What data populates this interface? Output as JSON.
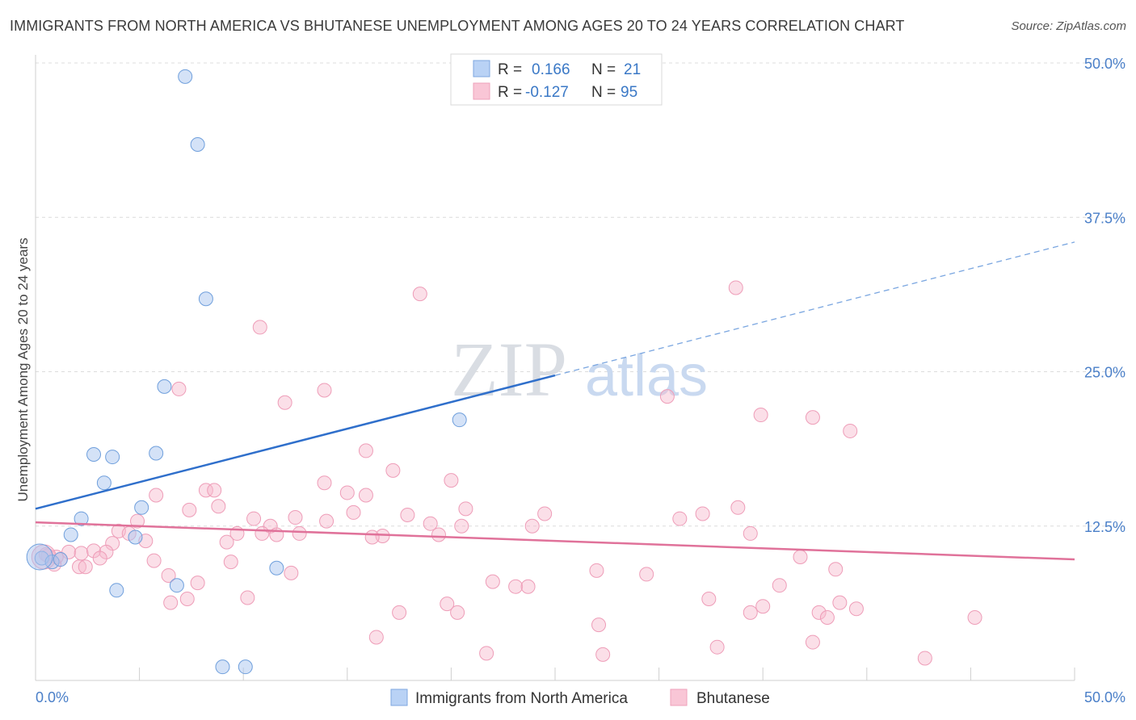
{
  "title": "IMMIGRANTS FROM NORTH AMERICA VS BHUTANESE UNEMPLOYMENT AMONG AGES 20 TO 24 YEARS CORRELATION CHART",
  "source": "Source: ZipAtlas.com",
  "watermark": {
    "zip": "ZIP",
    "atlas": "atlas"
  },
  "legend": {
    "rows": [
      {
        "r_label": "R =",
        "r_value": "0.166",
        "n_label": "N =",
        "n_value": "21"
      },
      {
        "r_label": "R =",
        "r_value": "-0.127",
        "n_label": "N =",
        "n_value": "95"
      }
    ]
  },
  "bottom_legend": [
    "Immigrants from North America",
    "Bhutanese"
  ],
  "chart_data": {
    "type": "scatter",
    "title": "IMMIGRANTS FROM NORTH AMERICA VS BHUTANESE UNEMPLOYMENT AMONG AGES 20 TO 24 YEARS CORRELATION CHART",
    "xlabel": "",
    "ylabel": "Unemployment Among Ages 20 to 24 years",
    "xlim": [
      0,
      50
    ],
    "ylim": [
      0,
      50
    ],
    "x_tick_labels": [
      "0.0%",
      "50.0%"
    ],
    "y_ticks": [
      12.5,
      25.0,
      37.5,
      50.0
    ],
    "y_tick_labels": [
      "12.5%",
      "25.0%",
      "37.5%",
      "50.0%"
    ],
    "grid": true,
    "legend_position": "top-center",
    "colors": {
      "series1": "#a9c6ef",
      "series1_line": "#2f6fcb",
      "series2": "#f7b8cc",
      "series2_line": "#e0729a"
    },
    "series": [
      {
        "name": "Immigrants from North America",
        "r": 0.166,
        "n": 21,
        "trend": {
          "x0": 0,
          "y0": 13.9,
          "x1": 25,
          "y1": 24.7,
          "dash_to_x": 50,
          "dash_to_y": 35.5
        },
        "points": [
          [
            7.2,
            48.9
          ],
          [
            7.8,
            43.4
          ],
          [
            8.2,
            30.9
          ],
          [
            6.2,
            23.8
          ],
          [
            20.4,
            21.1
          ],
          [
            2.8,
            18.3
          ],
          [
            3.7,
            18.1
          ],
          [
            5.8,
            18.4
          ],
          [
            3.3,
            16.0
          ],
          [
            5.1,
            14.0
          ],
          [
            2.2,
            13.1
          ],
          [
            1.7,
            11.8
          ],
          [
            4.8,
            11.6
          ],
          [
            0.3,
            9.9
          ],
          [
            0.8,
            9.6
          ],
          [
            1.2,
            9.8
          ],
          [
            3.9,
            7.3
          ],
          [
            6.8,
            7.7
          ],
          [
            11.6,
            9.1
          ],
          [
            9.0,
            1.1
          ],
          [
            10.1,
            1.1
          ]
        ],
        "big_point": [
          0.2,
          10.0
        ]
      },
      {
        "name": "Bhutanese",
        "r": -0.127,
        "n": 95,
        "trend": {
          "x0": 0,
          "y0": 12.8,
          "x1": 50,
          "y1": 9.8
        },
        "points": [
          [
            18.5,
            31.3
          ],
          [
            33.7,
            31.8
          ],
          [
            10.8,
            28.6
          ],
          [
            6.9,
            23.6
          ],
          [
            13.9,
            23.5
          ],
          [
            12.0,
            22.5
          ],
          [
            30.4,
            23.0
          ],
          [
            34.9,
            21.5
          ],
          [
            37.4,
            21.3
          ],
          [
            39.2,
            20.2
          ],
          [
            15.9,
            18.6
          ],
          [
            17.2,
            17.0
          ],
          [
            20.0,
            16.2
          ],
          [
            13.9,
            16.0
          ],
          [
            15.0,
            15.2
          ],
          [
            15.9,
            15.0
          ],
          [
            8.2,
            15.4
          ],
          [
            8.6,
            15.4
          ],
          [
            5.8,
            15.0
          ],
          [
            8.8,
            14.1
          ],
          [
            7.4,
            13.8
          ],
          [
            20.7,
            13.9
          ],
          [
            15.3,
            13.6
          ],
          [
            33.8,
            14.0
          ],
          [
            24.5,
            13.5
          ],
          [
            17.9,
            13.4
          ],
          [
            32.1,
            13.5
          ],
          [
            31.0,
            13.1
          ],
          [
            12.5,
            13.2
          ],
          [
            14.0,
            12.9
          ],
          [
            10.5,
            13.1
          ],
          [
            19.0,
            12.7
          ],
          [
            11.3,
            12.5
          ],
          [
            4.9,
            12.9
          ],
          [
            23.9,
            12.5
          ],
          [
            20.5,
            12.5
          ],
          [
            4.0,
            12.1
          ],
          [
            4.5,
            11.9
          ],
          [
            9.7,
            11.9
          ],
          [
            10.9,
            11.9
          ],
          [
            11.6,
            11.8
          ],
          [
            12.7,
            11.9
          ],
          [
            16.7,
            11.7
          ],
          [
            16.2,
            11.6
          ],
          [
            19.4,
            11.8
          ],
          [
            34.4,
            11.9
          ],
          [
            5.3,
            11.3
          ],
          [
            9.2,
            11.2
          ],
          [
            3.7,
            11.1
          ],
          [
            1.6,
            10.4
          ],
          [
            2.2,
            10.3
          ],
          [
            2.8,
            10.5
          ],
          [
            3.4,
            10.4
          ],
          [
            3.1,
            9.9
          ],
          [
            1.2,
            9.8
          ],
          [
            0.6,
            10.1
          ],
          [
            0.9,
            9.4
          ],
          [
            2.1,
            9.2
          ],
          [
            2.4,
            9.2
          ],
          [
            5.7,
            9.7
          ],
          [
            9.4,
            9.6
          ],
          [
            36.8,
            10.0
          ],
          [
            6.4,
            8.5
          ],
          [
            12.3,
            8.7
          ],
          [
            27.0,
            8.9
          ],
          [
            29.4,
            8.6
          ],
          [
            38.5,
            9.0
          ],
          [
            22.0,
            8.0
          ],
          [
            7.8,
            7.9
          ],
          [
            23.1,
            7.6
          ],
          [
            23.7,
            7.6
          ],
          [
            35.8,
            7.7
          ],
          [
            7.3,
            6.6
          ],
          [
            6.5,
            6.3
          ],
          [
            10.2,
            6.7
          ],
          [
            32.4,
            6.6
          ],
          [
            19.8,
            6.2
          ],
          [
            35.0,
            6.0
          ],
          [
            38.7,
            6.3
          ],
          [
            39.5,
            5.8
          ],
          [
            17.5,
            5.5
          ],
          [
            20.3,
            5.5
          ],
          [
            34.4,
            5.5
          ],
          [
            37.7,
            5.5
          ],
          [
            38.1,
            5.1
          ],
          [
            45.2,
            5.1
          ],
          [
            27.1,
            4.5
          ],
          [
            16.4,
            3.5
          ],
          [
            32.8,
            2.7
          ],
          [
            37.4,
            3.1
          ],
          [
            21.7,
            2.2
          ],
          [
            27.3,
            2.1
          ],
          [
            42.8,
            1.8
          ],
          [
            0.5,
            10.2
          ],
          [
            1.0,
            10.0
          ]
        ],
        "big_point": [
          0.4,
          10.0
        ]
      }
    ]
  }
}
